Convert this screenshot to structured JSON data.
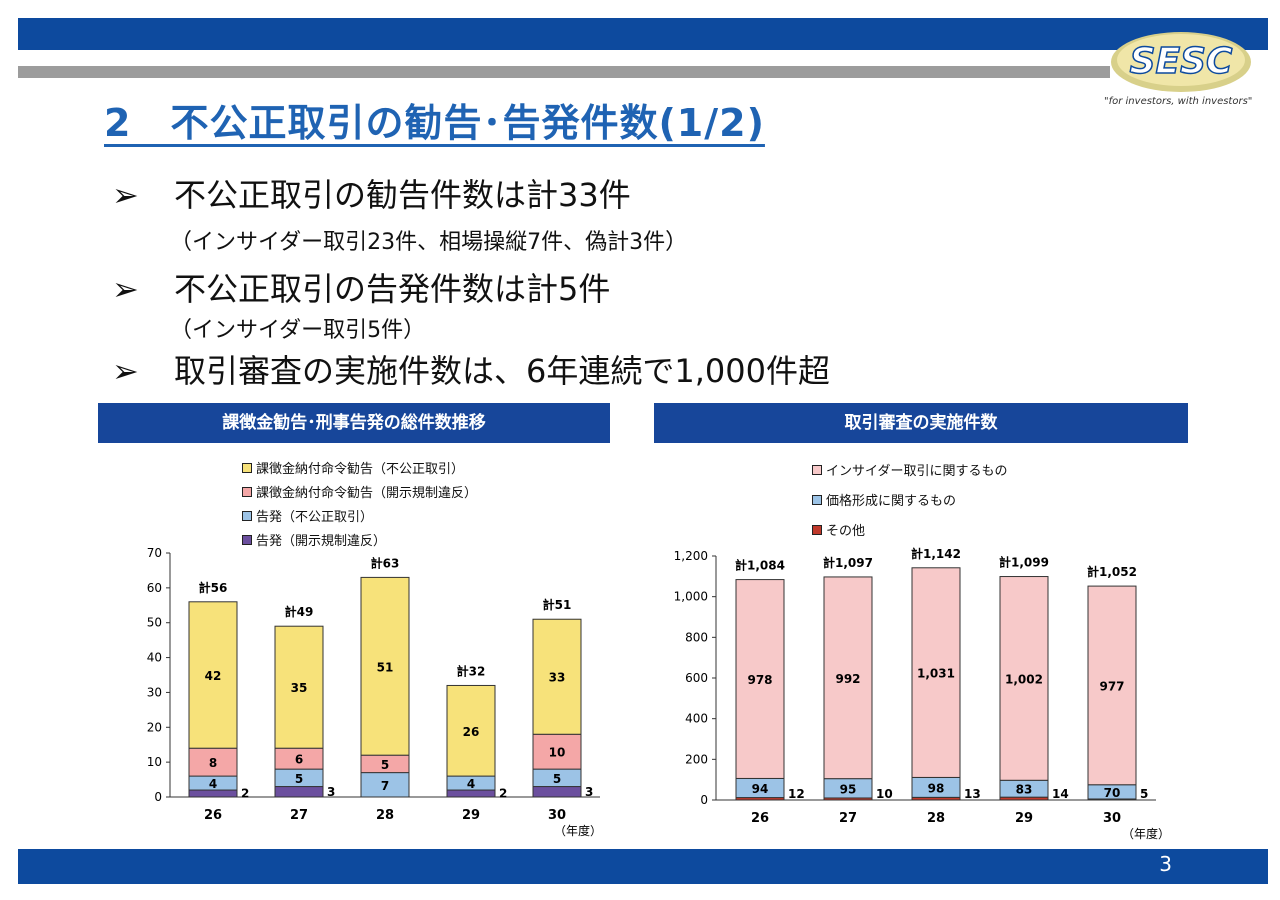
{
  "logo": {
    "text": "SESC",
    "tagline": "\"for investors, with investors\""
  },
  "title": "2　不公正取引の勧告･告発件数(1/2)",
  "bullets": [
    {
      "arrow": "➢",
      "text": "不公正取引の勧告件数は計33件",
      "sub": "（インサイダー取引23件、相場操縦7件、偽計3件）"
    },
    {
      "arrow": "➢",
      "text": "不公正取引の告発件数は計5件",
      "sub": "（インサイダー取引5件）"
    },
    {
      "arrow": "➢",
      "text": "取引審査の実施件数は、6年連続で1,000件超",
      "sub": ""
    }
  ],
  "page_number": "3",
  "chart_data": [
    {
      "type": "bar",
      "stacked": true,
      "title": "課徴金勧告･刑事告発の総件数推移",
      "categories": [
        "26",
        "27",
        "28",
        "29",
        "30"
      ],
      "x_unit": "（年度）",
      "ylim": [
        0,
        70
      ],
      "yticks": [
        0,
        10,
        20,
        30,
        40,
        50,
        60,
        70
      ],
      "grid": false,
      "legend_position": "top",
      "series": [
        {
          "name": "告発（開示規制違反）",
          "color": "#6b4f9e",
          "values": [
            2,
            3,
            0,
            2,
            3
          ],
          "labels": [
            "2",
            "3",
            "",
            "2",
            "3"
          ]
        },
        {
          "name": "告発（不公正取引）",
          "color": "#9cc3e6",
          "values": [
            4,
            5,
            7,
            4,
            5
          ],
          "labels": [
            "4",
            "5",
            "7",
            "4",
            "5"
          ]
        },
        {
          "name": "課徴金納付命令勧告（開示規制違反）",
          "color": "#f4a7a7",
          "values": [
            8,
            6,
            5,
            0,
            10
          ],
          "labels": [
            "8",
            "6",
            "5",
            "",
            "10"
          ]
        },
        {
          "name": "課徴金納付命令勧告（不公正取引）",
          "color": "#f7e27a",
          "values": [
            42,
            35,
            51,
            26,
            33
          ],
          "labels": [
            "42",
            "35",
            "51",
            "26",
            "33"
          ]
        }
      ],
      "legend_order": [
        3,
        2,
        1,
        0
      ],
      "totals": [
        "計56",
        "計49",
        "計63",
        "計32",
        "計51"
      ]
    },
    {
      "type": "bar",
      "stacked": true,
      "title": "取引審査の実施件数",
      "categories": [
        "26",
        "27",
        "28",
        "29",
        "30"
      ],
      "x_unit": "（年度）",
      "ylim": [
        0,
        1200
      ],
      "yticks": [
        "0",
        "200",
        "400",
        "600",
        "800",
        "1,000",
        "1,200"
      ],
      "grid": false,
      "legend_position": "top",
      "series": [
        {
          "name": "その他",
          "color": "#c0392b",
          "values": [
            12,
            10,
            13,
            14,
            5
          ],
          "labels": [
            "12",
            "10",
            "13",
            "14",
            "5"
          ]
        },
        {
          "name": "価格形成に関するもの",
          "color": "#9cc3e6",
          "values": [
            94,
            95,
            98,
            83,
            70
          ],
          "labels": [
            "94",
            "95",
            "98",
            "83",
            "70"
          ]
        },
        {
          "name": "インサイダー取引に関するもの",
          "color": "#f7c9c9",
          "values": [
            978,
            992,
            1031,
            1002,
            977
          ],
          "labels": [
            "978",
            "992",
            "1,031",
            "1,002",
            "977"
          ]
        }
      ],
      "legend_order": [
        2,
        1,
        0
      ],
      "totals": [
        "計1,084",
        "計1,097",
        "計1,142",
        "計1,099",
        "計1,052"
      ]
    }
  ]
}
